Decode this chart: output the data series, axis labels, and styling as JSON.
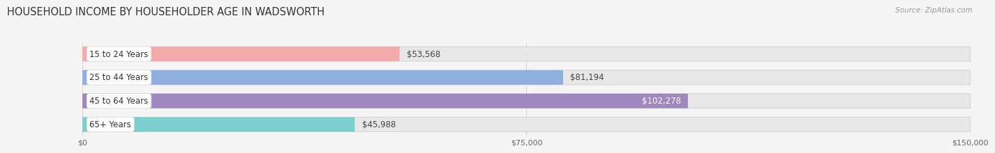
{
  "title": "HOUSEHOLD INCOME BY HOUSEHOLDER AGE IN WADSWORTH",
  "source": "Source: ZipAtlas.com",
  "categories": [
    "15 to 24 Years",
    "25 to 44 Years",
    "45 to 64 Years",
    "65+ Years"
  ],
  "values": [
    53568,
    81194,
    102278,
    45988
  ],
  "bar_colors": [
    "#f2aaaa",
    "#8fb0de",
    "#9f87c0",
    "#7bcfcf"
  ],
  "bar_bg_color": "#e8e8e8",
  "bar_border_color": "#d0d0d0",
  "value_labels": [
    "$53,568",
    "$81,194",
    "$102,278",
    "$45,988"
  ],
  "xlim": [
    0,
    150000
  ],
  "xticks": [
    0,
    75000,
    150000
  ],
  "xtick_labels": [
    "$0",
    "$75,000",
    "$150,000"
  ],
  "title_fontsize": 10.5,
  "label_fontsize": 8.5,
  "source_fontsize": 7.5,
  "bar_height": 0.62,
  "background_color": "#f5f5f5",
  "value_inside_threshold": 95000
}
